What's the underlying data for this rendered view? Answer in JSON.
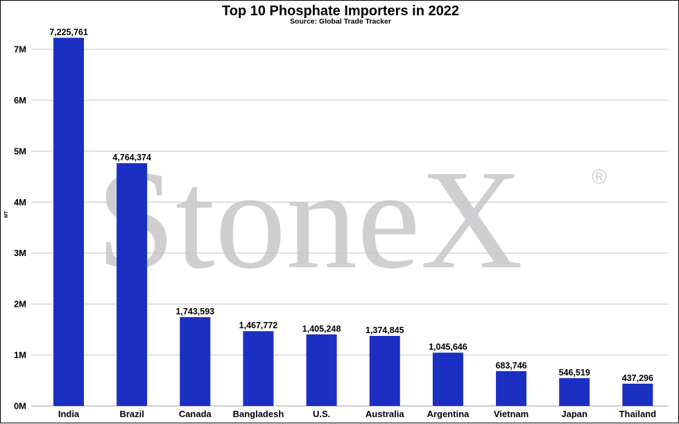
{
  "chart_data": {
    "type": "bar",
    "title": "Top 10 Phosphate Importers in 2022",
    "subtitle": "Source: Global Trade Tracker",
    "ylabel": "MT",
    "xlabel": "",
    "categories": [
      "India",
      "Brazil",
      "Canada",
      "Bangladesh",
      "U.S.",
      "Australia",
      "Argentina",
      "Vietnam",
      "Japan",
      "Thailand"
    ],
    "values": [
      7225761,
      4764374,
      1743593,
      1467772,
      1405248,
      1374845,
      1045646,
      683746,
      546519,
      437296
    ],
    "data_labels": [
      "7,225,761",
      "4,764,374",
      "1,743,593",
      "1,467,772",
      "1,405,248",
      "1,374,845",
      "1,045,646",
      "683,746",
      "546,519",
      "437,296"
    ],
    "ylim": [
      0,
      7000000
    ],
    "yticks": [
      0,
      1000000,
      2000000,
      3000000,
      4000000,
      5000000,
      6000000,
      7000000
    ],
    "ytick_labels": [
      "0M",
      "1M",
      "2M",
      "3M",
      "4M",
      "5M",
      "6M",
      "7M"
    ],
    "grid": true,
    "bar_color": "#1b2fc2"
  },
  "watermark": {
    "text": "StoneX",
    "mark": "®",
    "color": "#cfcfd1"
  }
}
